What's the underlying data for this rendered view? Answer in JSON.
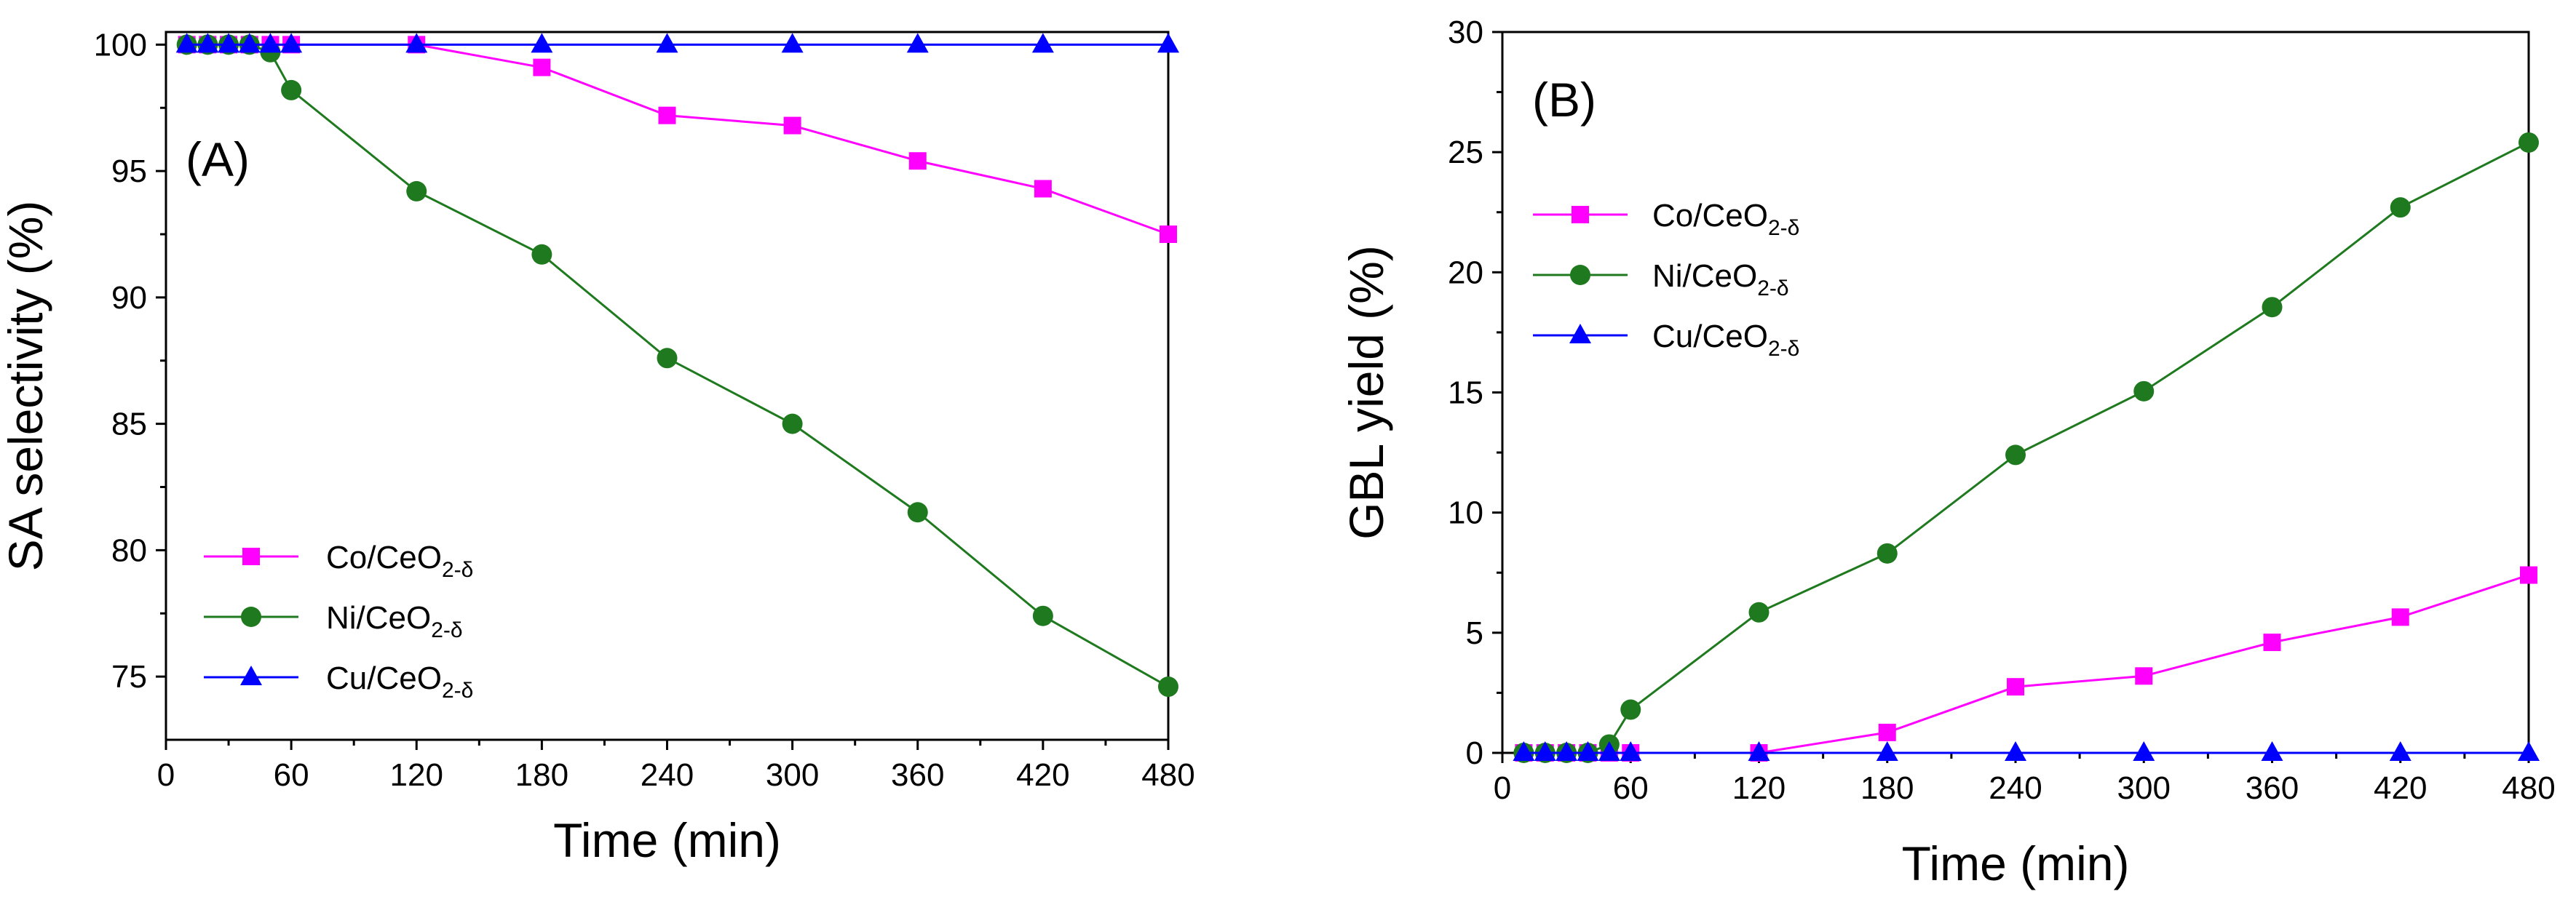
{
  "chart_data": [
    {
      "type": "line",
      "panel_label": "(A)",
      "xlabel": "Time (min)",
      "ylabel": "SA selectivity (%)",
      "xlim": [
        0,
        480
      ],
      "ylim": [
        72.5,
        100.5
      ],
      "xticks": [
        0,
        60,
        120,
        180,
        240,
        300,
        360,
        420,
        480
      ],
      "yticks": [
        75,
        80,
        85,
        90,
        95,
        100
      ],
      "legend_position": "bottom-left",
      "series": [
        {
          "name": "Co/CeO2-δ",
          "label_main": "Co/CeO",
          "label_sub": "2-δ",
          "color": "#ff00ff",
          "marker": "square",
          "x": [
            10,
            20,
            30,
            40,
            50,
            60,
            120,
            180,
            240,
            300,
            360,
            420,
            480
          ],
          "y": [
            100,
            100,
            100,
            100,
            100,
            100,
            100,
            99.1,
            97.2,
            96.8,
            95.4,
            94.3,
            92.5
          ]
        },
        {
          "name": "Ni/CeO2-δ",
          "label_main": "Ni/CeO",
          "label_sub": "2-δ",
          "color": "#1f7a1f",
          "marker": "circle",
          "x": [
            10,
            20,
            30,
            40,
            50,
            60,
            120,
            180,
            240,
            300,
            360,
            420,
            480
          ],
          "y": [
            100,
            100,
            100,
            100,
            99.7,
            98.2,
            94.2,
            91.7,
            87.6,
            85.0,
            81.5,
            77.4,
            74.6
          ]
        },
        {
          "name": "Cu/CeO2-δ",
          "label_main": "Cu/CeO",
          "label_sub": "2-δ",
          "color": "#0000ff",
          "marker": "triangle",
          "x": [
            10,
            20,
            30,
            40,
            50,
            60,
            120,
            180,
            240,
            300,
            360,
            420,
            480
          ],
          "y": [
            100,
            100,
            100,
            100,
            100,
            100,
            100,
            100,
            100,
            100,
            100,
            100,
            100
          ]
        }
      ]
    },
    {
      "type": "line",
      "panel_label": "(B)",
      "xlabel": "Time (min)",
      "ylabel": "GBL yield (%)",
      "xlim": [
        0,
        480
      ],
      "ylim": [
        0,
        30
      ],
      "xticks": [
        0,
        60,
        120,
        180,
        240,
        300,
        360,
        420,
        480
      ],
      "yticks": [
        0,
        5,
        10,
        15,
        20,
        25,
        30
      ],
      "legend_position": "top-left",
      "series": [
        {
          "name": "Co/CeO2-δ",
          "label_main": "Co/CeO",
          "label_sub": "2-δ",
          "color": "#ff00ff",
          "marker": "square",
          "x": [
            10,
            20,
            30,
            40,
            50,
            60,
            120,
            180,
            240,
            300,
            360,
            420,
            480
          ],
          "y": [
            0,
            0,
            0,
            0,
            0,
            0,
            0,
            0.85,
            2.75,
            3.2,
            4.6,
            5.65,
            7.4
          ]
        },
        {
          "name": "Ni/CeO2-δ",
          "label_main": "Ni/CeO",
          "label_sub": "2-δ",
          "color": "#1f7a1f",
          "marker": "circle",
          "x": [
            10,
            20,
            30,
            40,
            50,
            60,
            120,
            180,
            240,
            300,
            360,
            420,
            480
          ],
          "y": [
            0,
            0,
            0,
            0,
            0.35,
            1.8,
            5.85,
            8.3,
            12.4,
            15.05,
            18.55,
            22.7,
            25.4
          ]
        },
        {
          "name": "Cu/CeO2-δ",
          "label_main": "Cu/CeO",
          "label_sub": "2-δ",
          "color": "#0000ff",
          "marker": "triangle",
          "x": [
            10,
            20,
            30,
            40,
            50,
            60,
            120,
            180,
            240,
            300,
            360,
            420,
            480
          ],
          "y": [
            0,
            0,
            0,
            0,
            0,
            0,
            0,
            0,
            0,
            0,
            0,
            0,
            0
          ]
        }
      ]
    }
  ]
}
